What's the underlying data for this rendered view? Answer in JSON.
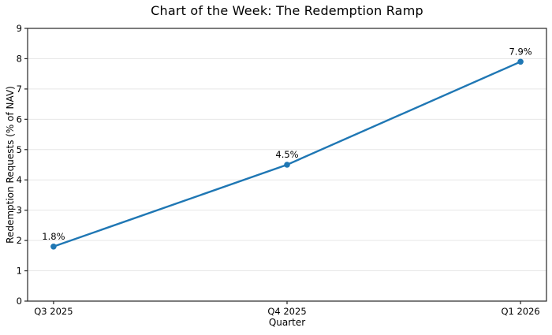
{
  "chart_data": {
    "type": "line",
    "title": "Chart of the Week: The Redemption Ramp",
    "xlabel": "Quarter",
    "ylabel": "Redemption Requests (% of NAV)",
    "categories": [
      "Q3 2025",
      "Q4 2025",
      "Q1 2026"
    ],
    "series": [
      {
        "values": [
          1.8,
          4.5,
          7.9
        ]
      }
    ],
    "point_labels": [
      "1.8%",
      "4.5%",
      "7.9%"
    ],
    "ylim": [
      0,
      9
    ],
    "yticks": [
      0,
      1,
      2,
      3,
      4,
      5,
      6,
      7,
      8,
      9
    ],
    "grid": "horizontal",
    "legend": "none",
    "colors": {
      "line": "#1f77b4",
      "marker": "#1f77b4",
      "grid": "#e7e7e7",
      "spine": "#262626",
      "text": "#000000",
      "background": "#ffffff"
    }
  }
}
